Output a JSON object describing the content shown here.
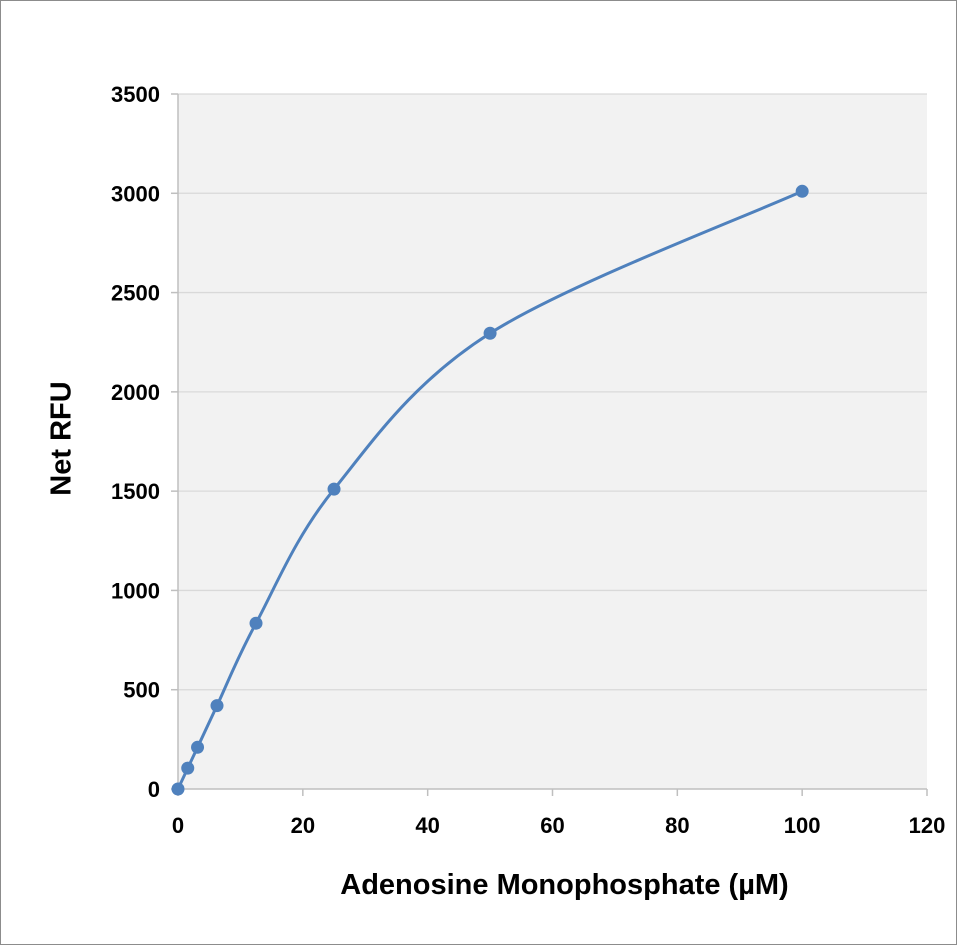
{
  "chart_data": {
    "type": "line",
    "title": "",
    "xlabel": "Adenosine Monophosphate (µM)",
    "ylabel": "Net RFU",
    "xlim": [
      0,
      120
    ],
    "ylim": [
      0,
      3500
    ],
    "x_ticks": [
      0,
      20,
      40,
      60,
      80,
      100,
      120
    ],
    "y_ticks": [
      0,
      500,
      1000,
      1500,
      2000,
      2500,
      3000,
      3500
    ],
    "x_tick_labels": [
      "0",
      "20",
      "40",
      "60",
      "80",
      "100",
      "120"
    ],
    "y_tick_labels": [
      "0",
      "500",
      "1000",
      "1500",
      "2000",
      "2500",
      "3000",
      "3500"
    ],
    "grid": "horizontal",
    "legend": "none",
    "smoothed": true,
    "colors": {
      "series": "#4f81bd",
      "plot_background": "#f2f2f2",
      "gridline": "#d9d9d9",
      "frame_border": "#8c8c8c"
    },
    "series": [
      {
        "x": [
          0,
          1.56,
          3.13,
          6.25,
          12.5,
          25,
          50,
          100
        ],
        "y": [
          0,
          105,
          210,
          420,
          835,
          1510,
          2295,
          3010
        ]
      }
    ]
  }
}
